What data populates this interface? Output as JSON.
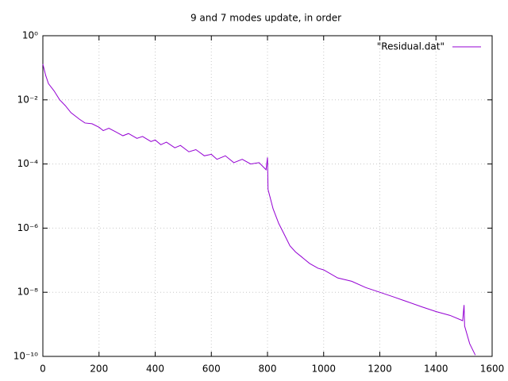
{
  "chart_data": {
    "type": "line",
    "title": "9 and 7 modes update, in order",
    "x": [
      0,
      10,
      20,
      40,
      60,
      80,
      100,
      130,
      150,
      175,
      200,
      215,
      235,
      260,
      285,
      305,
      335,
      355,
      385,
      400,
      420,
      440,
      470,
      490,
      520,
      545,
      575,
      600,
      620,
      650,
      680,
      710,
      740,
      770,
      795,
      800,
      802,
      820,
      840,
      860,
      880,
      900,
      920,
      950,
      980,
      1000,
      1050,
      1100,
      1150,
      1200,
      1250,
      1300,
      1350,
      1400,
      1450,
      1495,
      1500,
      1502,
      1520,
      1540
    ],
    "series": [
      {
        "name": "\"Residual.dat\"",
        "color": "#9400d3",
        "values": [
          0.13,
          0.058,
          0.032,
          0.019,
          0.01,
          0.0066,
          0.004,
          0.0025,
          0.0019,
          0.0018,
          0.0014,
          0.0011,
          0.0013,
          0.001,
          0.00076,
          0.00089,
          0.00063,
          0.00072,
          0.0005,
          0.00056,
          0.0004,
          0.00048,
          0.00032,
          0.00038,
          0.00024,
          0.00028,
          0.00018,
          0.0002,
          0.00014,
          0.00018,
          0.00011,
          0.00014,
          0.0001,
          0.00011,
          6.6e-05,
          0.00016,
          1.6e-05,
          4e-06,
          1.4e-06,
          6.3e-07,
          2.8e-07,
          1.8e-07,
          1.3e-07,
          7.9e-08,
          5.6e-08,
          5e-08,
          2.8e-08,
          2.2e-08,
          1.4e-08,
          1e-08,
          7.1e-09,
          5e-09,
          3.5e-09,
          2.5e-09,
          1.9e-09,
          1.3e-09,
          4e-09,
          8.9e-10,
          2.5e-10,
          1.1e-10
        ]
      }
    ],
    "xlim": [
      0,
      1600
    ],
    "xticks": [
      0,
      200,
      400,
      600,
      800,
      1000,
      1200,
      1400,
      1600
    ],
    "ylim": [
      1e-10,
      1
    ],
    "log_y": true,
    "yticks": [
      {
        "value": 1e-10,
        "label": "10⁻¹⁰"
      },
      {
        "value": 1e-08,
        "label": "10⁻⁸"
      },
      {
        "value": 1e-06,
        "label": "10⁻⁶"
      },
      {
        "value": 0.0001,
        "label": "10⁻⁴"
      },
      {
        "value": 0.01,
        "label": "10⁻²"
      },
      {
        "value": 1,
        "label": "10⁰"
      }
    ],
    "grid": true,
    "legend": "top-right"
  }
}
